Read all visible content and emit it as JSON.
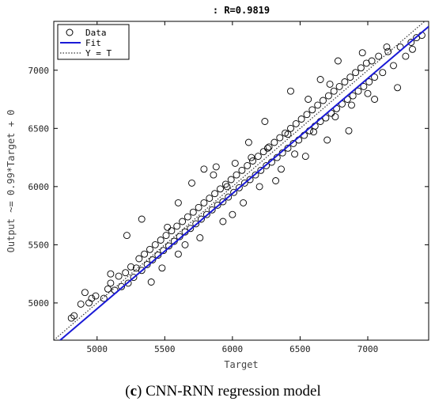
{
  "chart_data": {
    "type": "scatter",
    "title": ": R=0.9819",
    "xlabel": "Target",
    "ylabel": "Output ~= 0.99*Target + 0",
    "xlim": [
      4680,
      7450
    ],
    "ylim": [
      4680,
      7420
    ],
    "xticks": [
      5000,
      5500,
      6000,
      6500,
      7000
    ],
    "yticks": [
      5000,
      5500,
      6000,
      6500,
      7000
    ],
    "grid": false,
    "legend_position": "top-left",
    "legend": [
      {
        "label": "Data",
        "style": "circle-marker"
      },
      {
        "label": "Fit",
        "style": "solid-blue-line"
      },
      {
        "label": "Y = T",
        "style": "dotted-line"
      }
    ],
    "fit": {
      "slope": 0.99,
      "intercept": 0,
      "color": "#1a1ad6"
    },
    "identity_color": "#333333",
    "marker_color": "#000000",
    "points_approx": [
      [
        4810,
        4870
      ],
      [
        4830,
        4890
      ],
      [
        4880,
        4990
      ],
      [
        4910,
        5090
      ],
      [
        4940,
        5000
      ],
      [
        4960,
        5040
      ],
      [
        4990,
        5060
      ],
      [
        5050,
        5040
      ],
      [
        5080,
        5120
      ],
      [
        5100,
        5170
      ],
      [
        5130,
        5110
      ],
      [
        5160,
        5230
      ],
      [
        5180,
        5140
      ],
      [
        5210,
        5260
      ],
      [
        5230,
        5170
      ],
      [
        5250,
        5310
      ],
      [
        5270,
        5220
      ],
      [
        5290,
        5300
      ],
      [
        5310,
        5380
      ],
      [
        5330,
        5280
      ],
      [
        5350,
        5420
      ],
      [
        5370,
        5330
      ],
      [
        5390,
        5460
      ],
      [
        5410,
        5370
      ],
      [
        5430,
        5500
      ],
      [
        5450,
        5410
      ],
      [
        5470,
        5540
      ],
      [
        5490,
        5450
      ],
      [
        5510,
        5580
      ],
      [
        5530,
        5490
      ],
      [
        5550,
        5620
      ],
      [
        5570,
        5530
      ],
      [
        5590,
        5660
      ],
      [
        5610,
        5570
      ],
      [
        5630,
        5700
      ],
      [
        5650,
        5610
      ],
      [
        5670,
        5740
      ],
      [
        5690,
        5640
      ],
      [
        5710,
        5780
      ],
      [
        5730,
        5680
      ],
      [
        5750,
        5820
      ],
      [
        5770,
        5720
      ],
      [
        5790,
        5860
      ],
      [
        5810,
        5760
      ],
      [
        5830,
        5900
      ],
      [
        5850,
        5800
      ],
      [
        5870,
        5940
      ],
      [
        5890,
        5840
      ],
      [
        5910,
        5980
      ],
      [
        5930,
        5870
      ],
      [
        5950,
        6020
      ],
      [
        5970,
        5910
      ],
      [
        5990,
        6060
      ],
      [
        6010,
        5950
      ],
      [
        6030,
        6100
      ],
      [
        6050,
        5990
      ],
      [
        6070,
        6140
      ],
      [
        6090,
        6030
      ],
      [
        6110,
        6180
      ],
      [
        6130,
        6060
      ],
      [
        6150,
        6220
      ],
      [
        6170,
        6100
      ],
      [
        6190,
        6260
      ],
      [
        6210,
        6140
      ],
      [
        6230,
        6300
      ],
      [
        6250,
        6180
      ],
      [
        6270,
        6340
      ],
      [
        6290,
        6210
      ],
      [
        6310,
        6380
      ],
      [
        6330,
        6250
      ],
      [
        6350,
        6420
      ],
      [
        6370,
        6290
      ],
      [
        6390,
        6460
      ],
      [
        6410,
        6330
      ],
      [
        6430,
        6500
      ],
      [
        6450,
        6370
      ],
      [
        6470,
        6540
      ],
      [
        6490,
        6400
      ],
      [
        6510,
        6580
      ],
      [
        6530,
        6440
      ],
      [
        6550,
        6620
      ],
      [
        6570,
        6480
      ],
      [
        6590,
        6660
      ],
      [
        6610,
        6520
      ],
      [
        6630,
        6700
      ],
      [
        6650,
        6560
      ],
      [
        6670,
        6740
      ],
      [
        6690,
        6590
      ],
      [
        6710,
        6780
      ],
      [
        6730,
        6630
      ],
      [
        6750,
        6820
      ],
      [
        6770,
        6670
      ],
      [
        6790,
        6860
      ],
      [
        6810,
        6710
      ],
      [
        6830,
        6900
      ],
      [
        6850,
        6750
      ],
      [
        6870,
        6940
      ],
      [
        6890,
        6780
      ],
      [
        6910,
        6980
      ],
      [
        6930,
        6820
      ],
      [
        6950,
        7020
      ],
      [
        6970,
        6860
      ],
      [
        6990,
        7060
      ],
      [
        7010,
        6900
      ],
      [
        7030,
        7080
      ],
      [
        7050,
        6940
      ],
      [
        7080,
        7120
      ],
      [
        7110,
        6980
      ],
      [
        7150,
        7160
      ],
      [
        7190,
        7040
      ],
      [
        7240,
        7200
      ],
      [
        7280,
        7120
      ],
      [
        7320,
        7240
      ],
      [
        7360,
        7280
      ],
      [
        7400,
        7300
      ],
      [
        5330,
        5720
      ],
      [
        5100,
        5250
      ],
      [
        5220,
        5580
      ],
      [
        5600,
        5860
      ],
      [
        5700,
        6030
      ],
      [
        5790,
        6150
      ],
      [
        5880,
        6170
      ],
      [
        6000,
        5760
      ],
      [
        6120,
        6380
      ],
      [
        6240,
        6560
      ],
      [
        6320,
        6050
      ],
      [
        6430,
        6820
      ],
      [
        6540,
        6260
      ],
      [
        6650,
        6920
      ],
      [
        6700,
        6400
      ],
      [
        6780,
        7080
      ],
      [
        6860,
        6480
      ],
      [
        6960,
        7150
      ],
      [
        7050,
        6750
      ],
      [
        7140,
        7200
      ],
      [
        7220,
        6850
      ],
      [
        7330,
        7180
      ],
      [
        5480,
        5300
      ],
      [
        5600,
        5420
      ],
      [
        5760,
        5560
      ],
      [
        5930,
        5700
      ],
      [
        6080,
        5860
      ],
      [
        6200,
        6000
      ],
      [
        6360,
        6150
      ],
      [
        6460,
        6280
      ],
      [
        6600,
        6470
      ],
      [
        6760,
        6600
      ],
      [
        6880,
        6700
      ],
      [
        7000,
        6800
      ],
      [
        5400,
        5180
      ],
      [
        5520,
        5650
      ],
      [
        5650,
        5500
      ],
      [
        5860,
        6100
      ],
      [
        5960,
        6000
      ],
      [
        6020,
        6200
      ],
      [
        6140,
        6250
      ],
      [
        6260,
        6330
      ],
      [
        6410,
        6450
      ],
      [
        6560,
        6750
      ],
      [
        6720,
        6880
      ]
    ]
  },
  "caption": {
    "prefix": "(",
    "letter": "c",
    "suffix": ") CNN-RNN regression model"
  }
}
